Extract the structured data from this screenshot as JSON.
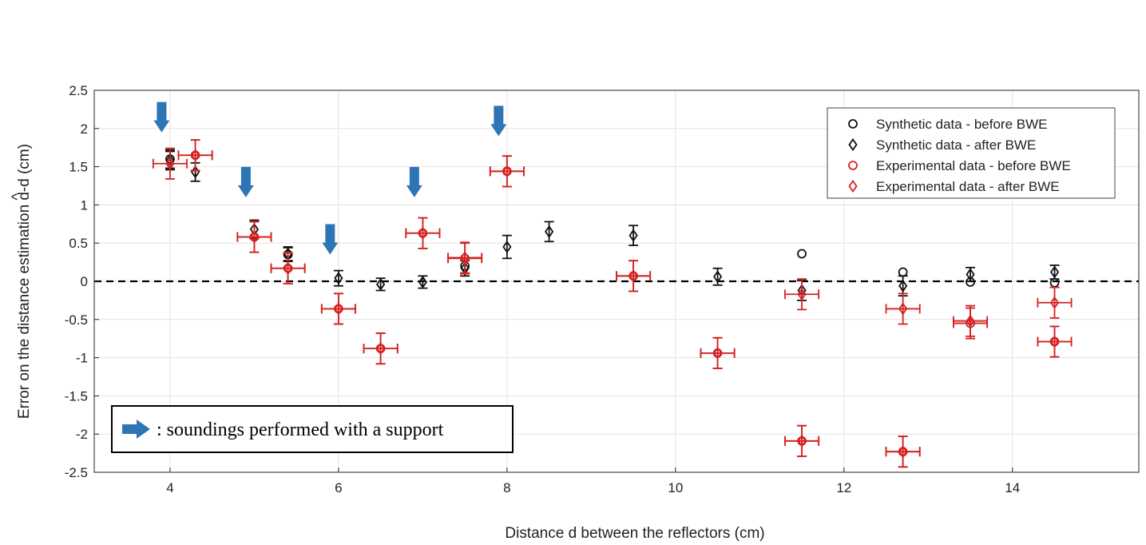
{
  "chart_data": {
    "type": "scatter",
    "xlabel": "Distance d between the reflectors (cm)",
    "ylabel_prefix": "Error on the distance estimation ",
    "ylabel_hat": "^",
    "ylabel_suffix": "d-d (cm)",
    "xlim": [
      3.1,
      15.5
    ],
    "ylim": [
      -2.5,
      2.5
    ],
    "xticks": [
      4,
      6,
      8,
      10,
      12,
      14
    ],
    "yticks": [
      -2.5,
      -2,
      -1.5,
      -1,
      -0.5,
      0,
      0.5,
      1,
      1.5,
      2,
      2.5
    ],
    "grid": true,
    "reference_line": 0,
    "legend_position": "top-right",
    "series": [
      {
        "name": "Synthetic data - before BWE",
        "color": "#111111",
        "marker": "circle",
        "points": [
          {
            "x": 4.0,
            "y": 1.6,
            "err": 0.12
          },
          {
            "x": 5.4,
            "y": 0.35,
            "err": 0.09
          },
          {
            "x": 7.5,
            "y": 0.2,
            "err": 0.1
          },
          {
            "x": 11.5,
            "y": 0.36
          },
          {
            "x": 12.7,
            "y": 0.12
          },
          {
            "x": 13.5,
            "y": -0.01
          },
          {
            "x": 14.5,
            "y": -0.02
          }
        ]
      },
      {
        "name": "Synthetic data - after BWE",
        "color": "#111111",
        "marker": "diamond",
        "points": [
          {
            "x": 4.0,
            "y": 1.58,
            "err": 0.12
          },
          {
            "x": 4.3,
            "y": 1.43,
            "err": 0.12
          },
          {
            "x": 5.0,
            "y": 0.68,
            "err": 0.12
          },
          {
            "x": 5.4,
            "y": 0.36,
            "err": 0.09
          },
          {
            "x": 6.0,
            "y": 0.04,
            "err": 0.1
          },
          {
            "x": 6.5,
            "y": -0.04,
            "err": 0.08
          },
          {
            "x": 7.0,
            "y": -0.01,
            "err": 0.08
          },
          {
            "x": 7.5,
            "y": 0.17,
            "err": 0.1
          },
          {
            "x": 8.0,
            "y": 0.45,
            "err": 0.15
          },
          {
            "x": 8.5,
            "y": 0.65,
            "err": 0.13
          },
          {
            "x": 9.5,
            "y": 0.6,
            "err": 0.13
          },
          {
            "x": 10.5,
            "y": 0.06,
            "err": 0.11
          },
          {
            "x": 11.5,
            "y": -0.12,
            "err": 0.13
          },
          {
            "x": 12.7,
            "y": -0.06,
            "err": 0.13
          },
          {
            "x": 13.5,
            "y": 0.09,
            "err": 0.09
          },
          {
            "x": 14.5,
            "y": 0.12,
            "err": 0.09
          }
        ]
      },
      {
        "name": "Experimental data - before BWE",
        "color": "#d42222",
        "marker": "circle",
        "points": [
          {
            "x": 4.3,
            "y": 1.65,
            "err": 0.2,
            "xerr": 0.2
          },
          {
            "x": 5.0,
            "y": 0.58,
            "err": 0.2,
            "xerr": 0.2
          },
          {
            "x": 5.4,
            "y": 0.17,
            "err": 0.2,
            "xerr": 0.2
          },
          {
            "x": 6.0,
            "y": -0.36,
            "err": 0.2,
            "xerr": 0.2
          },
          {
            "x": 6.5,
            "y": -0.88,
            "err": 0.2,
            "xerr": 0.2
          },
          {
            "x": 7.0,
            "y": 0.63,
            "err": 0.2,
            "xerr": 0.2
          },
          {
            "x": 7.5,
            "y": 0.3,
            "err": 0.2,
            "xerr": 0.2
          },
          {
            "x": 8.0,
            "y": 1.44,
            "err": 0.2,
            "xerr": 0.2
          },
          {
            "x": 9.5,
            "y": 0.07,
            "err": 0.2,
            "xerr": 0.2
          },
          {
            "x": 10.5,
            "y": -0.94,
            "err": 0.2,
            "xerr": 0.2
          },
          {
            "x": 11.5,
            "y": -2.09,
            "err": 0.2,
            "xerr": 0.2
          },
          {
            "x": 12.7,
            "y": -2.23,
            "err": 0.2,
            "xerr": 0.2
          },
          {
            "x": 13.5,
            "y": -0.55,
            "err": 0.2,
            "xerr": 0.2
          },
          {
            "x": 14.5,
            "y": -0.79,
            "err": 0.2,
            "xerr": 0.2
          }
        ]
      },
      {
        "name": "Experimental data - after BWE",
        "color": "#d42222",
        "marker": "diamond",
        "points": [
          {
            "x": 4.0,
            "y": 1.54,
            "err": 0.2,
            "xerr": 0.2
          },
          {
            "x": 4.3,
            "y": 1.65,
            "err": 0.2,
            "xerr": 0.2
          },
          {
            "x": 5.0,
            "y": 0.58,
            "err": 0.2,
            "xerr": 0.2
          },
          {
            "x": 5.4,
            "y": 0.17,
            "err": 0.2,
            "xerr": 0.2
          },
          {
            "x": 6.0,
            "y": -0.36,
            "err": 0.2,
            "xerr": 0.2
          },
          {
            "x": 6.5,
            "y": -0.88,
            "err": 0.2,
            "xerr": 0.2
          },
          {
            "x": 7.0,
            "y": 0.63,
            "err": 0.2,
            "xerr": 0.2
          },
          {
            "x": 7.5,
            "y": 0.31,
            "err": 0.2,
            "xerr": 0.2
          },
          {
            "x": 8.0,
            "y": 1.44,
            "err": 0.2,
            "xerr": 0.2
          },
          {
            "x": 9.5,
            "y": 0.07,
            "err": 0.2,
            "xerr": 0.2
          },
          {
            "x": 10.5,
            "y": -0.94,
            "err": 0.2,
            "xerr": 0.2
          },
          {
            "x": 11.5,
            "y": -0.17,
            "err": 0.2,
            "xerr": 0.2
          },
          {
            "x": 11.5,
            "y": -2.09,
            "err": 0.2,
            "xerr": 0.2
          },
          {
            "x": 12.7,
            "y": -0.36,
            "err": 0.2,
            "xerr": 0.2
          },
          {
            "x": 12.7,
            "y": -2.23,
            "err": 0.2,
            "xerr": 0.2
          },
          {
            "x": 13.5,
            "y": -0.52,
            "err": 0.2,
            "xerr": 0.2
          },
          {
            "x": 14.5,
            "y": -0.28,
            "err": 0.2,
            "xerr": 0.2
          },
          {
            "x": 14.5,
            "y": -0.79,
            "err": 0.2,
            "xerr": 0.2
          }
        ]
      }
    ],
    "support_arrows": {
      "color": "#2e75b6",
      "points": [
        {
          "x": 3.9,
          "y": 1.95
        },
        {
          "x": 4.9,
          "y": 1.1
        },
        {
          "x": 5.9,
          "y": 0.35
        },
        {
          "x": 6.9,
          "y": 1.1
        },
        {
          "x": 7.9,
          "y": 1.9
        }
      ]
    },
    "annotation": {
      "text": ": soundings performed with a support",
      "position": "bottom-left"
    }
  }
}
